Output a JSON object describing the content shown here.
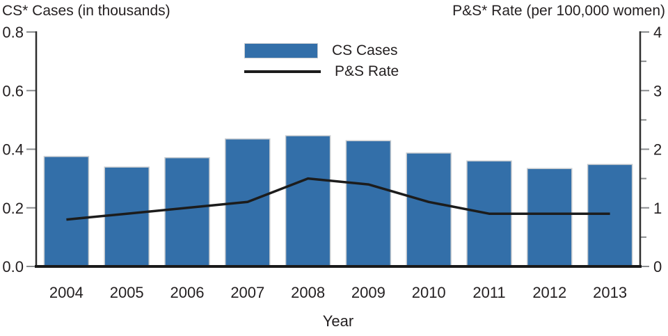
{
  "titles": {
    "left": "CS* Cases (in thousands)",
    "right": "P&S* Rate (per 100,000 women)"
  },
  "legend": [
    {
      "label": "CS Cases",
      "type": "bar"
    },
    {
      "label": "P&S Rate",
      "type": "line"
    }
  ],
  "colors": {
    "bar_fill": "#336FA9",
    "bar_border": "#C7CBCF",
    "line": "#1C1C1C",
    "axis_line": "#2E2E2E",
    "bottom_axis": "#1A1A1A",
    "tick": "#8A8C8E",
    "text": "#231F20"
  },
  "chart_data": {
    "type": "bar+line",
    "title": "",
    "xlabel": "Year",
    "categories": [
      "2004",
      "2005",
      "2006",
      "2007",
      "2008",
      "2009",
      "2010",
      "2011",
      "2012",
      "2013"
    ],
    "series": [
      {
        "name": "CS Cases",
        "type": "bar",
        "axis": "left",
        "values": [
          0.375,
          0.339,
          0.371,
          0.435,
          0.446,
          0.429,
          0.387,
          0.36,
          0.334,
          0.348
        ]
      },
      {
        "name": "P&S Rate",
        "type": "line",
        "axis": "right",
        "values": [
          0.8,
          0.9,
          1.0,
          1.1,
          1.5,
          1.4,
          1.1,
          0.9,
          0.9,
          0.9
        ]
      }
    ],
    "left_axis": {
      "label": "CS* Cases (in thousands)",
      "min": 0,
      "max": 0.8,
      "ticks": [
        0,
        0.2,
        0.4,
        0.6,
        0.8
      ]
    },
    "right_axis": {
      "label": "P&S* Rate (per 100,000 women)",
      "min": 0,
      "max": 4,
      "major_ticks": [
        0,
        1,
        2,
        3,
        4
      ],
      "minor_ticks": [
        0.5,
        1.5,
        2.5,
        3.5
      ]
    },
    "grid": false,
    "legend_position": "top-center"
  }
}
